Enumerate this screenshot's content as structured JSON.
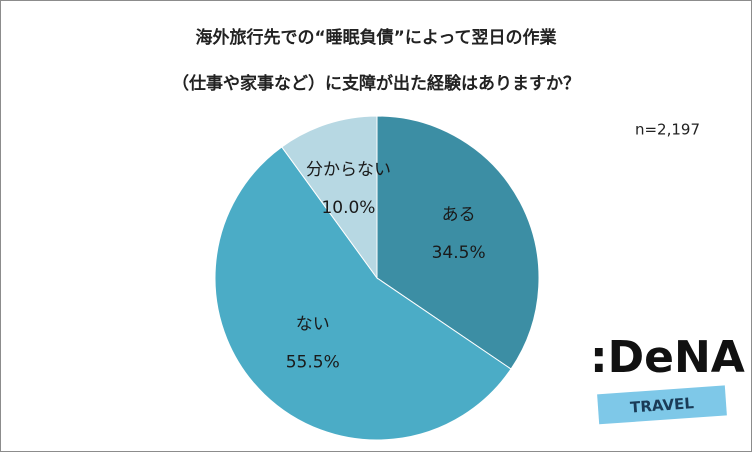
{
  "chart_data": {
    "type": "pie",
    "title": [
      "海外旅行先での“睡眠負債”によって翌日の作業",
      "（仕事や家事など）に支障が出た経験はありますか？"
    ],
    "annotation": "n=2,197",
    "categories": [
      "ある",
      "ない",
      "分からない"
    ],
    "values": [
      34.5,
      55.5,
      10.0
    ],
    "value_labels": [
      "34.5%",
      "55.5%",
      "10.0%"
    ],
    "colors": [
      "#3c8ea4",
      "#4bacc6",
      "#b7d8e3"
    ]
  },
  "logo": {
    "brand": ":DeNA",
    "sub": "TRAVEL"
  }
}
